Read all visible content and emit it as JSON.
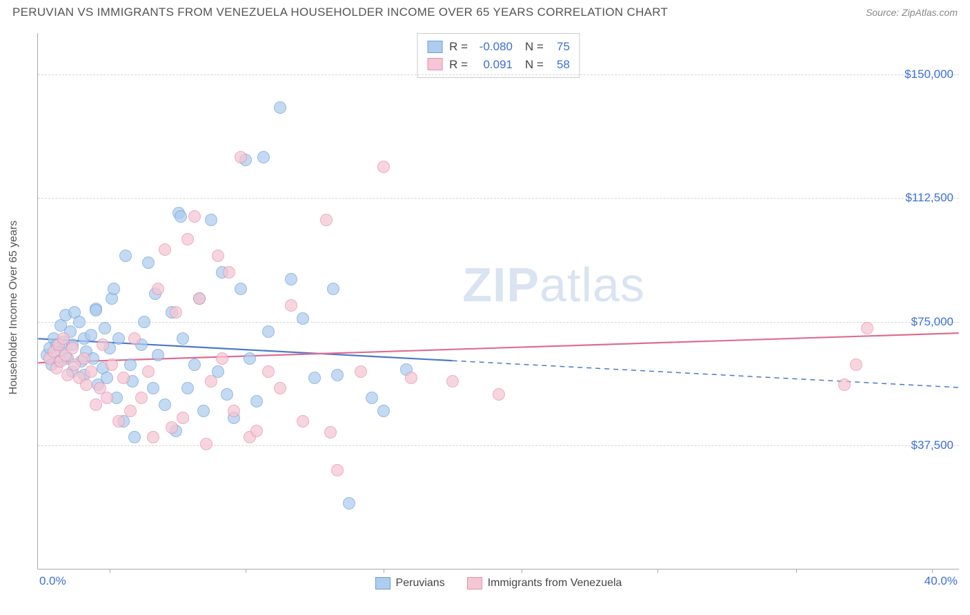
{
  "title": "PERUVIAN VS IMMIGRANTS FROM VENEZUELA HOUSEHOLDER INCOME OVER 65 YEARS CORRELATION CHART",
  "source": "Source: ZipAtlas.com",
  "ylabel": "Householder Income Over 65 years",
  "watermark_a": "ZIP",
  "watermark_b": "atlas",
  "chart": {
    "type": "scatter",
    "xlim": [
      0,
      40
    ],
    "ylim": [
      0,
      162500
    ],
    "xtick_label_min": "0.0%",
    "xtick_label_max": "40.0%",
    "xticks": [
      3.1,
      9.0,
      15.0,
      21.0,
      26.9,
      32.9,
      38.8
    ],
    "ygrid": [
      37500,
      75000,
      112500,
      150000
    ],
    "ytick_labels": [
      "$37,500",
      "$75,000",
      "$112,500",
      "$150,000"
    ],
    "background_color": "#ffffff",
    "grid_color": "#d5d5d5",
    "axis_color": "#aaaaaa",
    "label_fontsize": 16,
    "tick_fontsize": 17,
    "tick_color": "#3b6fd6",
    "marker_radius": 9,
    "series": [
      {
        "name": "Peruvians",
        "fill": "#aeccee",
        "stroke": "#6f9fd8",
        "opacity": 0.72,
        "R": "-0.080",
        "N": "75",
        "trend": {
          "y_at_x0": 69800,
          "y_at_x40": 55000,
          "solid_until_x": 18.0,
          "color": "#4a78c9",
          "width": 2.2
        },
        "points": [
          [
            0.4,
            65000
          ],
          [
            0.5,
            67000
          ],
          [
            0.6,
            62000
          ],
          [
            0.7,
            70000
          ],
          [
            0.8,
            68000
          ],
          [
            0.9,
            63000
          ],
          [
            1.0,
            66000
          ],
          [
            1.0,
            74000
          ],
          [
            1.1,
            69000
          ],
          [
            1.2,
            77000
          ],
          [
            1.3,
            64000
          ],
          [
            1.4,
            72000
          ],
          [
            1.5,
            60000
          ],
          [
            1.5,
            68000
          ],
          [
            1.6,
            78000
          ],
          [
            1.8,
            75000
          ],
          [
            1.9,
            63000
          ],
          [
            2.0,
            70000
          ],
          [
            2.0,
            59000
          ],
          [
            2.1,
            66000
          ],
          [
            2.3,
            71000
          ],
          [
            2.4,
            64000
          ],
          [
            2.5,
            79000
          ],
          [
            2.5,
            78500
          ],
          [
            2.6,
            56000
          ],
          [
            2.8,
            61000
          ],
          [
            2.9,
            73000
          ],
          [
            3.0,
            58000
          ],
          [
            3.1,
            67000
          ],
          [
            3.2,
            82000
          ],
          [
            3.3,
            85000
          ],
          [
            3.4,
            52000
          ],
          [
            3.5,
            70000
          ],
          [
            3.7,
            45000
          ],
          [
            3.8,
            95000
          ],
          [
            4.0,
            62000
          ],
          [
            4.1,
            57000
          ],
          [
            4.2,
            40000
          ],
          [
            4.5,
            68000
          ],
          [
            4.6,
            75000
          ],
          [
            4.8,
            93000
          ],
          [
            5.0,
            55000
          ],
          [
            5.1,
            83500
          ],
          [
            5.2,
            65000
          ],
          [
            5.5,
            50000
          ],
          [
            5.8,
            78000
          ],
          [
            6.0,
            42000
          ],
          [
            6.1,
            108000
          ],
          [
            6.2,
            107000
          ],
          [
            6.3,
            70000
          ],
          [
            6.5,
            55000
          ],
          [
            6.8,
            62000
          ],
          [
            7.0,
            82000
          ],
          [
            7.2,
            48000
          ],
          [
            7.5,
            106000
          ],
          [
            7.8,
            60000
          ],
          [
            8.0,
            90000
          ],
          [
            8.2,
            53000
          ],
          [
            8.5,
            46000
          ],
          [
            8.8,
            85000
          ],
          [
            9.0,
            124000
          ],
          [
            9.2,
            64000
          ],
          [
            9.5,
            51000
          ],
          [
            9.8,
            125000
          ],
          [
            10.0,
            72000
          ],
          [
            10.5,
            140000
          ],
          [
            11.0,
            88000
          ],
          [
            11.5,
            76000
          ],
          [
            12.0,
            58000
          ],
          [
            12.8,
            85000
          ],
          [
            13.0,
            59000
          ],
          [
            13.5,
            20000
          ],
          [
            14.5,
            52000
          ],
          [
            15.0,
            48000
          ],
          [
            16.0,
            60500
          ]
        ]
      },
      {
        "name": "Immigrants from Venezuela",
        "fill": "#f5c6d3",
        "stroke": "#e690a8",
        "opacity": 0.72,
        "R": "0.091",
        "N": "58",
        "trend": {
          "y_at_x0": 62500,
          "y_at_x40": 71500,
          "solid_until_x": 40.0,
          "color": "#e06c8f",
          "width": 2.2
        },
        "points": [
          [
            0.5,
            64000
          ],
          [
            0.7,
            66000
          ],
          [
            0.8,
            61000
          ],
          [
            0.9,
            68000
          ],
          [
            1.0,
            63000
          ],
          [
            1.1,
            70000
          ],
          [
            1.2,
            65000
          ],
          [
            1.3,
            59000
          ],
          [
            1.5,
            67000
          ],
          [
            1.6,
            62000
          ],
          [
            1.8,
            58000
          ],
          [
            2.0,
            64000
          ],
          [
            2.1,
            56000
          ],
          [
            2.3,
            60000
          ],
          [
            2.5,
            50000
          ],
          [
            2.7,
            55000
          ],
          [
            2.8,
            68000
          ],
          [
            3.0,
            52000
          ],
          [
            3.2,
            62000
          ],
          [
            3.5,
            45000
          ],
          [
            3.7,
            58000
          ],
          [
            4.0,
            48000
          ],
          [
            4.2,
            70000
          ],
          [
            4.5,
            52000
          ],
          [
            4.8,
            60000
          ],
          [
            5.0,
            40000
          ],
          [
            5.2,
            85000
          ],
          [
            5.5,
            97000
          ],
          [
            5.8,
            43000
          ],
          [
            6.0,
            78000
          ],
          [
            6.3,
            46000
          ],
          [
            6.5,
            100000
          ],
          [
            6.8,
            107000
          ],
          [
            7.0,
            82000
          ],
          [
            7.3,
            38000
          ],
          [
            7.5,
            57000
          ],
          [
            7.8,
            95000
          ],
          [
            8.0,
            64000
          ],
          [
            8.3,
            90000
          ],
          [
            8.5,
            48000
          ],
          [
            8.8,
            125000
          ],
          [
            9.2,
            40000
          ],
          [
            9.5,
            42000
          ],
          [
            10.0,
            60000
          ],
          [
            10.5,
            55000
          ],
          [
            11.0,
            80000
          ],
          [
            11.5,
            45000
          ],
          [
            12.5,
            106000
          ],
          [
            12.7,
            41500
          ],
          [
            13.0,
            30000
          ],
          [
            14.0,
            60000
          ],
          [
            15.0,
            122000
          ],
          [
            16.2,
            58000
          ],
          [
            18.0,
            57000
          ],
          [
            20.0,
            53000
          ],
          [
            35.0,
            56000
          ],
          [
            35.5,
            62000
          ],
          [
            36.0,
            73000
          ]
        ]
      }
    ]
  },
  "legend_top": [
    {
      "r_label": "R =",
      "n_label": "N ="
    }
  ],
  "legend_bottom_labels": [
    "Peruvians",
    "Immigrants from Venezuela"
  ]
}
